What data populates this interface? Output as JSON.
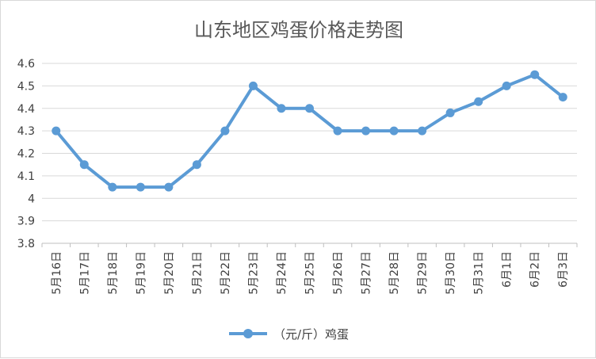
{
  "chart_data": {
    "type": "line",
    "title": "山东地区鸡蛋价格走势图",
    "xlabel": "",
    "ylabel": "",
    "categories": [
      "5月16日",
      "5月17日",
      "5月18日",
      "5月19日",
      "5月20日",
      "5月21日",
      "5月22日",
      "5月23日",
      "5月24日",
      "5月25日",
      "5月26日",
      "5月27日",
      "5月28日",
      "5月29日",
      "5月30日",
      "5月31日",
      "6月1日",
      "6月2日",
      "6月3日"
    ],
    "series": [
      {
        "name": "（元/斤）鸡蛋",
        "values": [
          4.3,
          4.15,
          4.05,
          4.05,
          4.05,
          4.15,
          4.3,
          4.5,
          4.4,
          4.4,
          4.3,
          4.3,
          4.3,
          4.3,
          4.38,
          4.43,
          4.5,
          4.55,
          4.45
        ]
      }
    ],
    "ylim": [
      3.8,
      4.6
    ],
    "yticks": [
      "3.8",
      "3.9",
      "4",
      "4.1",
      "4.2",
      "4.3",
      "4.4",
      "4.5",
      "4.6"
    ],
    "grid": true,
    "legend_position": "bottom",
    "line_color": "#5b9bd5",
    "grid_color": "#d9d9d9"
  }
}
